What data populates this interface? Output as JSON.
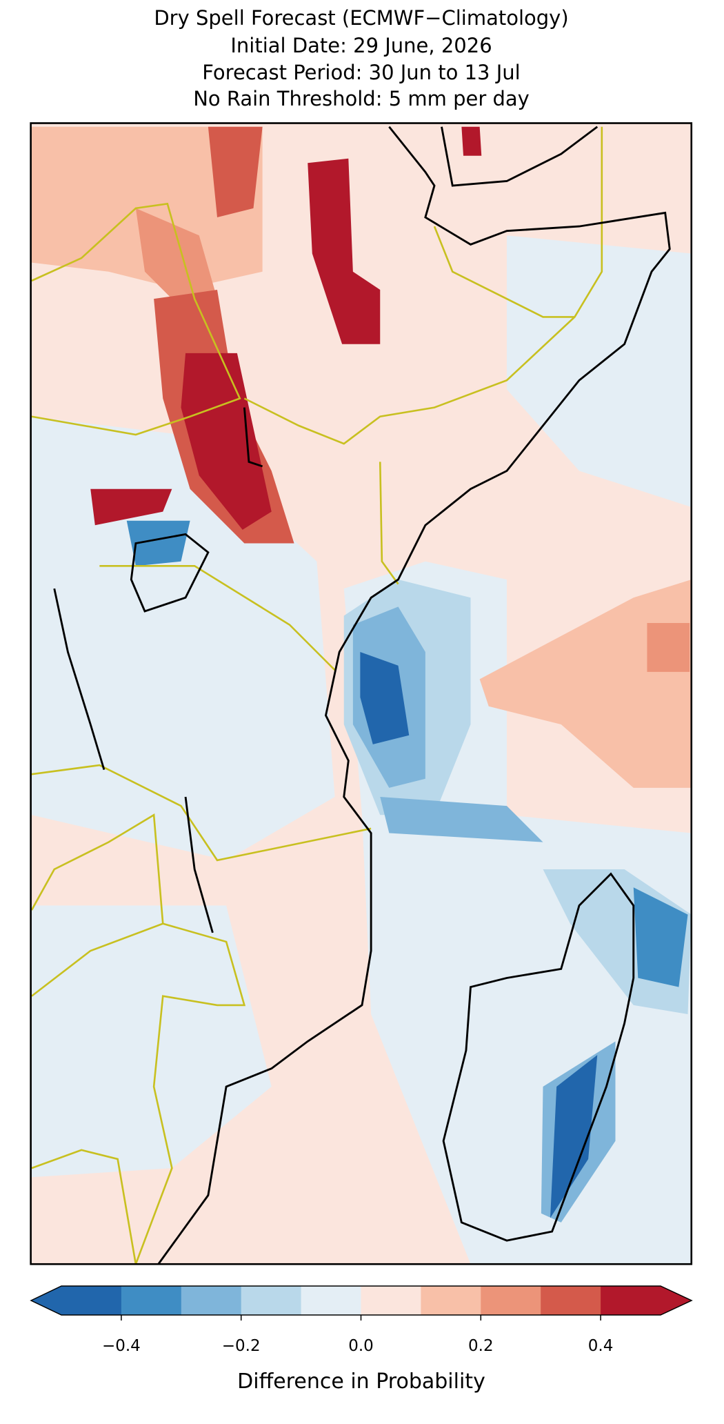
{
  "map": {
    "title_lines": [
      "Dry Spell Forecast (ECMWF−Climatology)",
      "Initial Date: 29 June, 2026",
      "Forecast Period: 30 Jun to 13 Jul",
      "No Rain Threshold: 5 mm per day"
    ],
    "colorbar": {
      "label": "Difference in Probability",
      "boundaries": [
        -0.5,
        -0.4,
        -0.3,
        -0.2,
        -0.1,
        0,
        0.1,
        0.2,
        0.3,
        0.4,
        0.5
      ],
      "colors": [
        "#2166ac",
        "#3f8dc4",
        "#7fb5da",
        "#b9d8ea",
        "#e4eef5",
        "#fbe5dd",
        "#f8c0a8",
        "#ec9479",
        "#d45a4b",
        "#b2182b"
      ],
      "ticks": [
        {
          "value": -0.4,
          "label": "−0.4"
        },
        {
          "value": -0.2,
          "label": "−0.2"
        },
        {
          "value": 0,
          "label": "0.0"
        },
        0.2,
        0.4
      ]
    }
  }
}
